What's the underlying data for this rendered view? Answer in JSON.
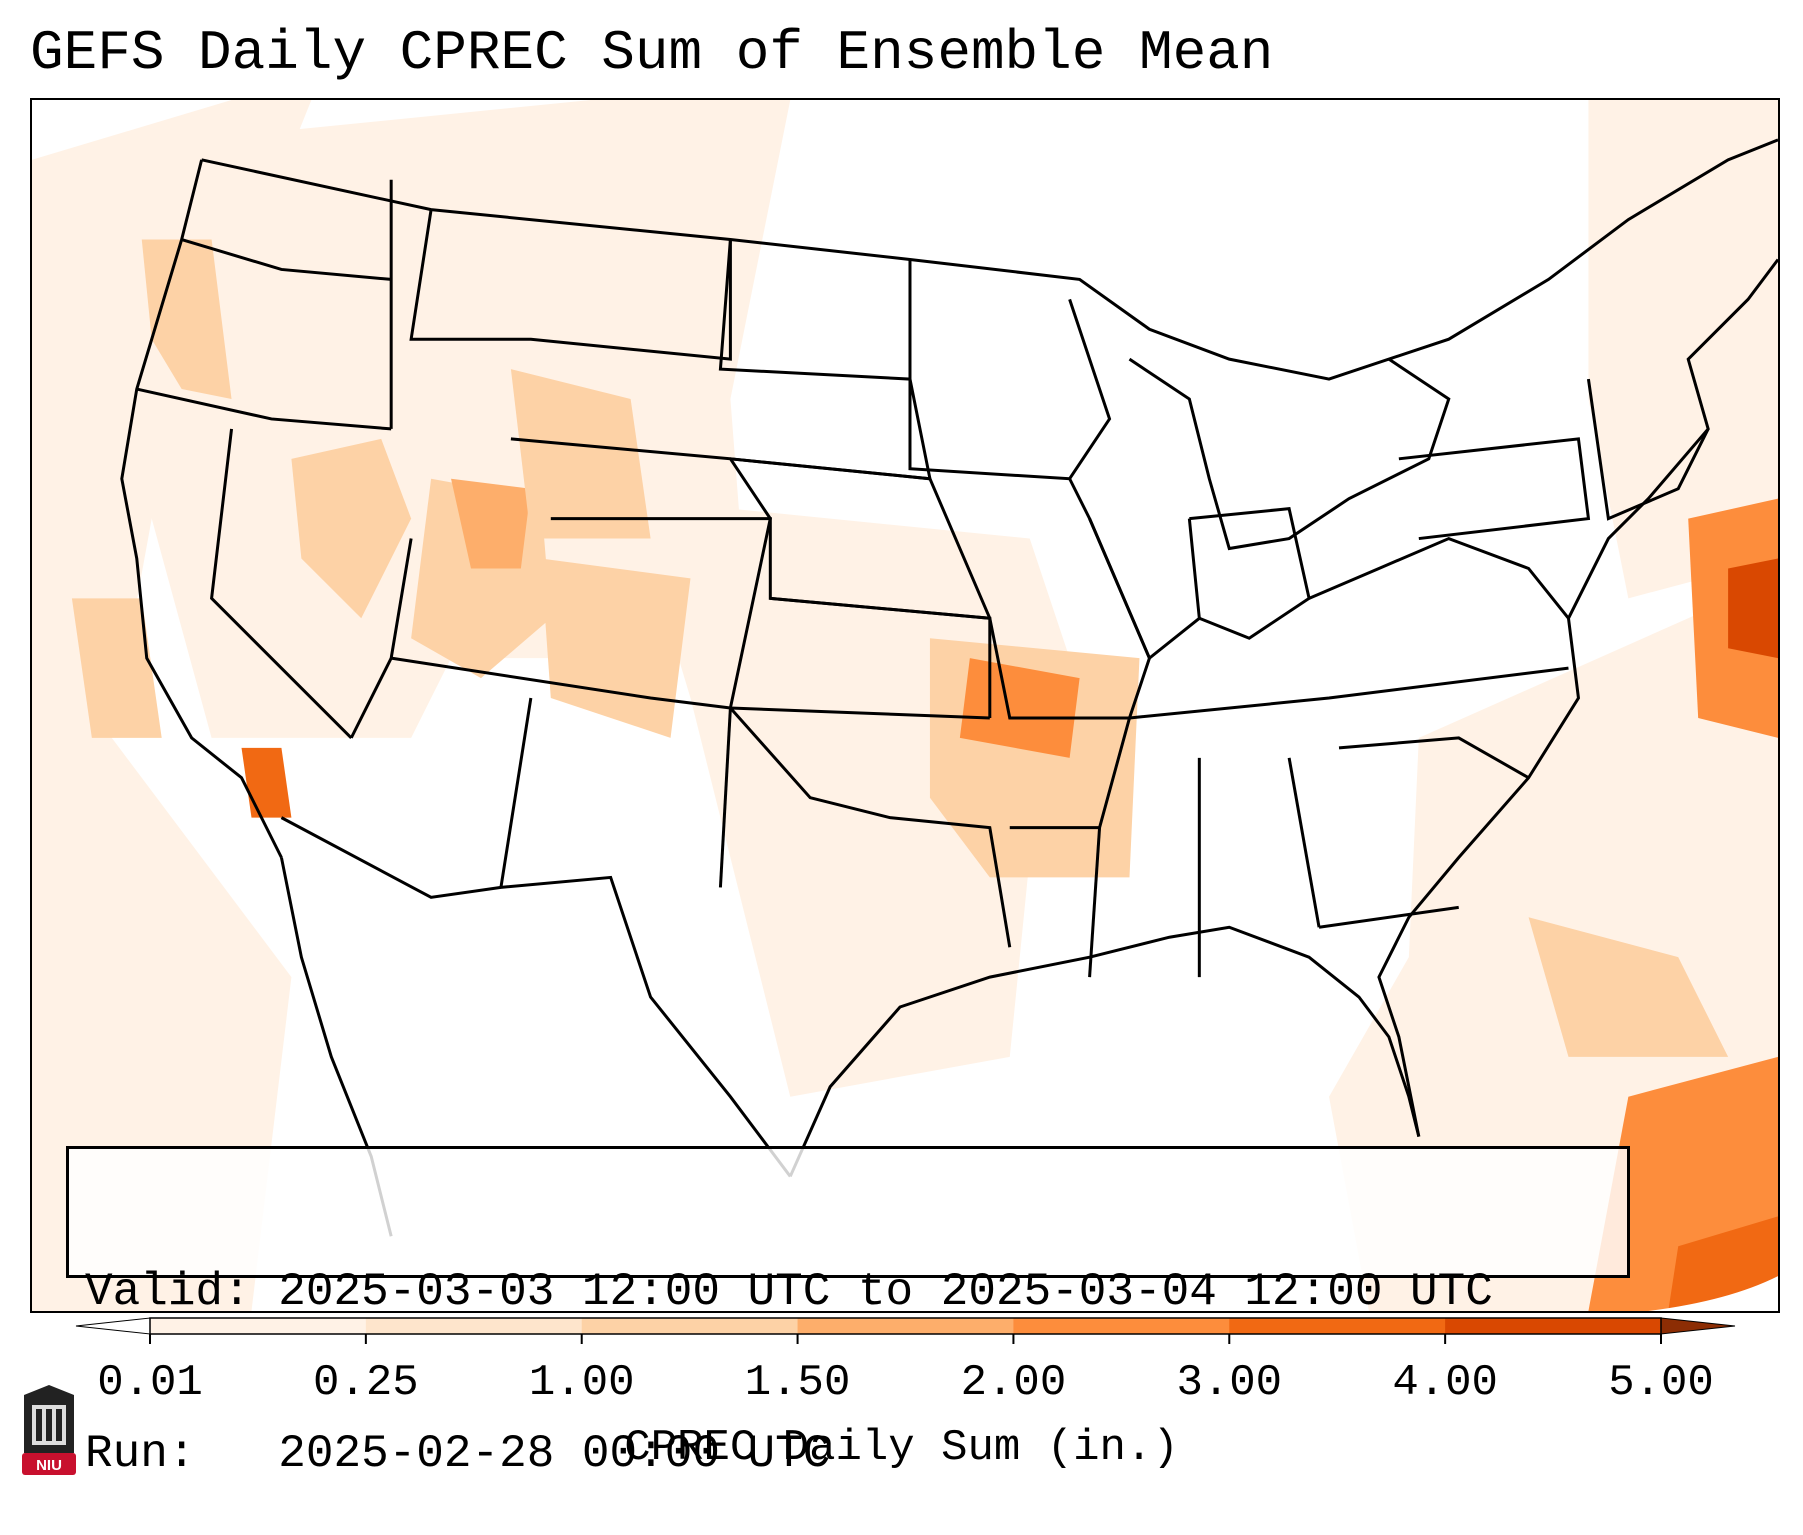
{
  "title": "GEFS Daily CPREC Sum of Ensemble Mean",
  "info": {
    "valid_label": "Valid:",
    "valid_value": "2025-03-03 12:00 UTC to 2025-03-04 12:00 UTC",
    "run_label": "Run:",
    "run_value": "2025-02-28 00:00 UTC"
  },
  "colorbar": {
    "label": "CPREC Daily Sum (in.)",
    "ticks": [
      "0.01",
      "0.25",
      "1.00",
      "1.50",
      "2.00",
      "3.00",
      "4.00",
      "5.00"
    ],
    "colors": [
      "#fff2e6",
      "#fee5cc",
      "#fdd2a6",
      "#fdae6b",
      "#fd8d3c",
      "#f16913",
      "#d94801"
    ],
    "over_color": "#8c2d04",
    "under_color": "#ffffff"
  },
  "map": {
    "region": "CONUS",
    "field": "CPREC",
    "precip_areas": [
      {
        "id": "pacific-coast",
        "color": "#fff2e6"
      },
      {
        "id": "oregon-coast",
        "color": "#fdd2a6"
      },
      {
        "id": "utah-max",
        "color": "#fdae6b"
      },
      {
        "id": "colorado",
        "color": "#fdd2a6"
      },
      {
        "id": "ark-mo-max",
        "color": "#fd8d3c"
      },
      {
        "id": "socal-max",
        "color": "#f16913"
      },
      {
        "id": "atlantic-max",
        "color": "#d94801"
      },
      {
        "id": "caribbean",
        "color": "#fd8d3c"
      }
    ]
  },
  "logo": {
    "text": "NIU",
    "color": "#c8102e"
  }
}
